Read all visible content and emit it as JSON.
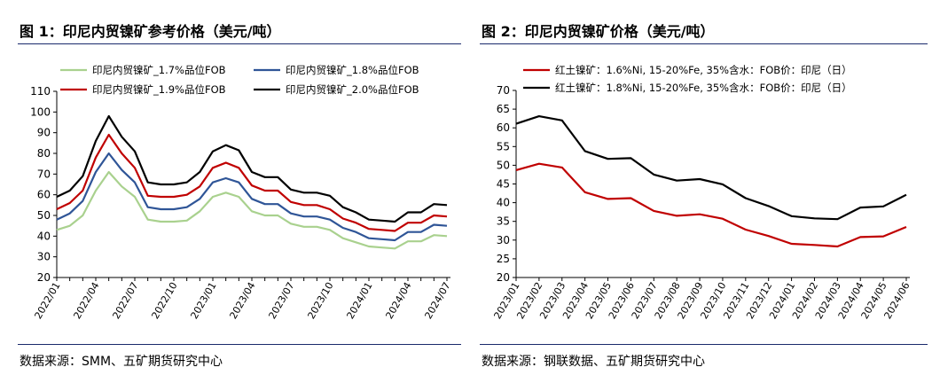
{
  "charts": [
    {
      "title": "图 1：印尼内贸镍矿参考价格（美元/吨）",
      "source": "数据来源：SMM、五矿期货研究中心",
      "chart_data": {
        "type": "line",
        "title": "印尼内贸镍矿参考价格（美元/吨）",
        "xlabel": "",
        "ylabel": "",
        "ylim": [
          20,
          110
        ],
        "yticks": [
          20,
          30,
          40,
          50,
          60,
          70,
          80,
          90,
          100,
          110
        ],
        "xticks": [
          "2022/01",
          "2022/04",
          "2022/07",
          "2022/10",
          "2023/01",
          "2023/04",
          "2023/07",
          "2023/10",
          "2024/01",
          "2024/04",
          "2024/07"
        ],
        "x": [
          "2022/01",
          "2022/02",
          "2022/03",
          "2022/04",
          "2022/05",
          "2022/06",
          "2022/07",
          "2022/08",
          "2022/09",
          "2022/10",
          "2022/11",
          "2022/12",
          "2023/01",
          "2023/02",
          "2023/03",
          "2023/04",
          "2023/05",
          "2023/06",
          "2023/07",
          "2023/08",
          "2023/09",
          "2023/10",
          "2023/11",
          "2023/12",
          "2024/01",
          "2024/02",
          "2024/03",
          "2024/04",
          "2024/05",
          "2024/06",
          "2024/07"
        ],
        "series": [
          {
            "name": "印尼内贸镍矿_1.7%品位FOB",
            "color": "#a9d18e",
            "values": [
              43,
              45,
              50,
              62,
              71,
              64,
              59,
              48,
              47,
              47,
              47.5,
              52,
              59,
              61,
              59,
              52,
              50,
              50,
              46,
              44.5,
              44.5,
              43,
              39,
              37,
              35,
              34.5,
              34,
              37.5,
              37.5,
              40.5,
              40
            ]
          },
          {
            "name": "印尼内贸镍矿_1.8%品位FOB",
            "color": "#2f5597",
            "values": [
              48,
              51,
              57,
              71,
              80,
              72,
              66,
              54,
              53,
              53,
              54,
              58,
              66,
              68,
              66,
              58,
              55.5,
              55.5,
              51,
              49.5,
              49.5,
              48,
              44,
              42,
              39,
              38.5,
              38,
              42,
              42,
              45.5,
              45
            ]
          },
          {
            "name": "印尼内贸镍矿_1.9%品位FOB",
            "color": "#c00000",
            "values": [
              53,
              56,
              62,
              78,
              89,
              80,
              73,
              59.5,
              59,
              59,
              60,
              64,
              73,
              75.5,
              73,
              64.5,
              62,
              62,
              56.5,
              55,
              55,
              53,
              48.5,
              46.5,
              43.5,
              43,
              42.5,
              46.5,
              46.5,
              50,
              49.5
            ]
          },
          {
            "name": "印尼内贸镍矿_2.0%品位FOB",
            "color": "#000000",
            "values": [
              59,
              62,
              69,
              86,
              98,
              88,
              81,
              66,
              65,
              65,
              66,
              71,
              81,
              84,
              81.5,
              71,
              68.5,
              68.5,
              62.5,
              61,
              61,
              59.5,
              54,
              51.5,
              48,
              47.5,
              47,
              51.5,
              51.5,
              55.5,
              55
            ]
          }
        ]
      }
    },
    {
      "title": "图 2：印尼内贸镍矿价格（美元/吨）",
      "source": "数据来源：钢联数据、五矿期货研究中心",
      "chart_data": {
        "type": "line",
        "title": "印尼内贸镍矿价格（美元/吨）",
        "xlabel": "",
        "ylabel": "",
        "ylim": [
          20,
          70
        ],
        "yticks": [
          20,
          25,
          30,
          35,
          40,
          45,
          50,
          55,
          60,
          65,
          70
        ],
        "xticks": [
          "2023/01",
          "2023/02",
          "2023/03",
          "2023/04",
          "2023/05",
          "2023/06",
          "2023/07",
          "2023/08",
          "2023/09",
          "2023/10",
          "2023/11",
          "2023/12",
          "2024/01",
          "2024/02",
          "2024/03",
          "2024/04",
          "2024/05",
          "2024/06"
        ],
        "x": [
          "2023/01",
          "2023/02",
          "2023/03",
          "2023/04",
          "2023/05",
          "2023/06",
          "2023/07",
          "2023/08",
          "2023/09",
          "2023/10",
          "2023/11",
          "2023/12",
          "2024/01",
          "2024/02",
          "2024/03",
          "2024/04",
          "2024/05",
          "2024/06"
        ],
        "series": [
          {
            "name": "红土镍矿：1.6%Ni, 15-20%Fe, 35%含水：FOB价：印尼（日）",
            "color": "#c00000",
            "values": [
              48.7,
              50.4,
              49.4,
              42.8,
              41.0,
              41.2,
              37.8,
              36.5,
              36.9,
              35.7,
              32.8,
              31.1,
              29.0,
              28.7,
              28.3,
              30.8,
              31.0,
              33.5
            ]
          },
          {
            "name": "红土镍矿：1.8%Ni, 15-20%Fe, 35%含水：FOB价：印尼（日）",
            "color": "#000000",
            "values": [
              61.1,
              63.1,
              62.0,
              53.8,
              51.7,
              51.9,
              47.5,
              45.9,
              46.3,
              44.9,
              41.2,
              39.1,
              36.4,
              35.8,
              35.6,
              38.7,
              39.0,
              42.1
            ]
          }
        ]
      }
    }
  ]
}
